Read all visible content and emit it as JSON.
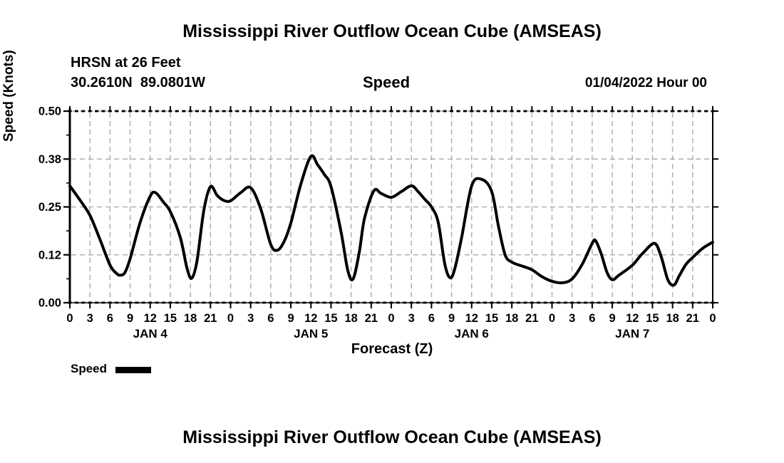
{
  "titles": {
    "top": "Mississippi River Outflow Ocean Cube (AMSEAS)",
    "bottom": "Mississippi River Outflow Ocean Cube (AMSEAS)"
  },
  "header": {
    "station": "HRSN at 26 Feet",
    "coordinates": "30.2610N  89.0801W",
    "variable": "Speed",
    "run_info": "01/04/2022 Hour 00"
  },
  "legend": {
    "label": "Speed",
    "swatch_color": "#000000"
  },
  "colors": {
    "background": "#ffffff",
    "text": "#000000",
    "line": "#000000",
    "grid": "#b0b0b0",
    "axis": "#000000"
  },
  "chart_data": {
    "type": "line",
    "title": "Speed",
    "xlabel": "Forecast (Z)",
    "ylabel": "Speed (Knots)",
    "ylim": [
      0.0,
      0.5
    ],
    "xlim_hours": [
      0,
      96
    ],
    "grid": true,
    "legend_position": "bottom-left",
    "ytick_values": [
      0.0,
      0.125,
      0.25,
      0.375,
      0.5
    ],
    "ytick_labels": [
      "0.00",
      "0.12",
      "0.25",
      "0.38",
      "0.50"
    ],
    "ytick_minor_values": [
      0.0625,
      0.1875,
      0.3125,
      0.4375
    ],
    "xtick_hours": [
      0,
      3,
      6,
      9,
      12,
      15,
      18,
      21,
      24,
      27,
      30,
      33,
      36,
      39,
      42,
      45,
      48,
      51,
      54,
      57,
      60,
      63,
      66,
      69,
      72,
      75,
      78,
      81,
      84,
      87,
      90,
      93,
      96
    ],
    "xtick_labels": [
      "0",
      "3",
      "6",
      "9",
      "12",
      "15",
      "18",
      "21",
      "0",
      "3",
      "6",
      "9",
      "12",
      "15",
      "18",
      "21",
      "0",
      "3",
      "6",
      "9",
      "12",
      "15",
      "18",
      "21",
      "0",
      "3",
      "6",
      "9",
      "12",
      "15",
      "18",
      "21",
      "0"
    ],
    "xtick_minor_step_hours": 1,
    "day_labels": [
      {
        "label": "JAN 4",
        "hour": 12
      },
      {
        "label": "JAN 5",
        "hour": 36
      },
      {
        "label": "JAN 6",
        "hour": 60
      },
      {
        "label": "JAN 7",
        "hour": 84
      }
    ],
    "series": [
      {
        "name": "Speed",
        "units": "Knots",
        "color": "#000000",
        "points": [
          [
            0,
            0.305
          ],
          [
            1.5,
            0.268
          ],
          [
            3,
            0.228
          ],
          [
            4.5,
            0.165
          ],
          [
            6,
            0.098
          ],
          [
            7,
            0.076
          ],
          [
            7.5,
            0.072
          ],
          [
            8.2,
            0.078
          ],
          [
            9,
            0.115
          ],
          [
            10.5,
            0.21
          ],
          [
            12,
            0.278
          ],
          [
            12.8,
            0.287
          ],
          [
            14,
            0.262
          ],
          [
            15,
            0.238
          ],
          [
            16.5,
            0.17
          ],
          [
            17.5,
            0.09
          ],
          [
            18.2,
            0.064
          ],
          [
            19,
            0.11
          ],
          [
            20,
            0.24
          ],
          [
            21,
            0.303
          ],
          [
            22,
            0.28
          ],
          [
            23,
            0.267
          ],
          [
            24,
            0.266
          ],
          [
            25.5,
            0.287
          ],
          [
            27,
            0.3
          ],
          [
            28.5,
            0.245
          ],
          [
            30,
            0.152
          ],
          [
            31,
            0.137
          ],
          [
            32,
            0.16
          ],
          [
            33,
            0.208
          ],
          [
            34.5,
            0.31
          ],
          [
            36,
            0.382
          ],
          [
            37,
            0.36
          ],
          [
            38,
            0.335
          ],
          [
            39,
            0.303
          ],
          [
            40.5,
            0.185
          ],
          [
            41.5,
            0.085
          ],
          [
            42.3,
            0.062
          ],
          [
            43.2,
            0.13
          ],
          [
            44,
            0.22
          ],
          [
            45.4,
            0.292
          ],
          [
            46.5,
            0.285
          ],
          [
            48,
            0.275
          ],
          [
            49.5,
            0.29
          ],
          [
            51,
            0.305
          ],
          [
            52,
            0.29
          ],
          [
            53,
            0.27
          ],
          [
            54,
            0.25
          ],
          [
            55,
            0.21
          ],
          [
            56,
            0.1
          ],
          [
            56.8,
            0.065
          ],
          [
            57.5,
            0.09
          ],
          [
            58.5,
            0.17
          ],
          [
            60,
            0.305
          ],
          [
            61.5,
            0.322
          ],
          [
            63,
            0.29
          ],
          [
            64,
            0.2
          ],
          [
            65,
            0.125
          ],
          [
            66,
            0.106
          ],
          [
            67.5,
            0.096
          ],
          [
            69,
            0.086
          ],
          [
            70.5,
            0.068
          ],
          [
            72,
            0.056
          ],
          [
            73.5,
            0.052
          ],
          [
            75,
            0.062
          ],
          [
            76.5,
            0.1
          ],
          [
            78,
            0.155
          ],
          [
            78.5,
            0.162
          ],
          [
            79.3,
            0.13
          ],
          [
            80.2,
            0.08
          ],
          [
            81,
            0.06
          ],
          [
            82,
            0.072
          ],
          [
            84,
            0.098
          ],
          [
            85.5,
            0.128
          ],
          [
            87.3,
            0.155
          ],
          [
            88.3,
            0.12
          ],
          [
            89.3,
            0.06
          ],
          [
            90.2,
            0.046
          ],
          [
            91,
            0.07
          ],
          [
            92,
            0.1
          ],
          [
            93,
            0.118
          ],
          [
            94.5,
            0.142
          ],
          [
            96,
            0.158
          ]
        ]
      }
    ]
  }
}
